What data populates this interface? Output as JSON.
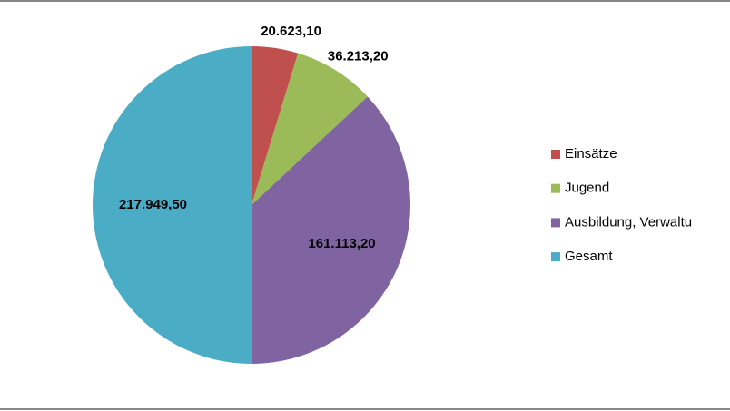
{
  "chart_data": {
    "type": "pie",
    "categories": [
      "Einsätze",
      "Jugend",
      "Ausbildung, Verwaltu",
      "Gesamt"
    ],
    "values": [
      20623.1,
      36213.2,
      161113.2,
      217949.5
    ],
    "value_labels": [
      "20.623,10",
      "36.213,20",
      "161.113,20",
      "217.949,50"
    ],
    "colors": [
      "#c0504d",
      "#9bbb59",
      "#8064a2",
      "#4bacc6"
    ],
    "legend": "right"
  }
}
